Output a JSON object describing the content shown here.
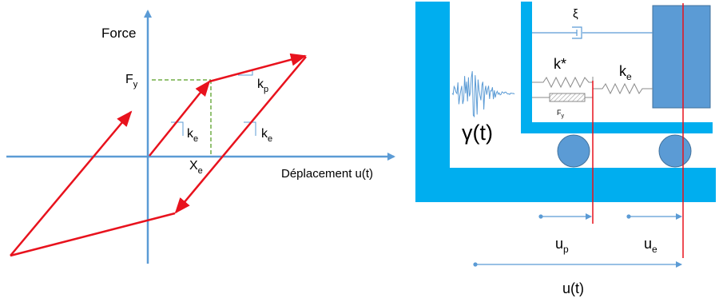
{
  "left_diagram": {
    "force_axis_label": "Force",
    "displacement_axis_label": "Déplacement u(t)",
    "fy_main": "F",
    "fy_sub": "y",
    "xe_main": "X",
    "xe_sub": "e",
    "slope_ke_1_main": "k",
    "slope_ke_1_sub": "e",
    "slope_kp_main": "k",
    "slope_kp_sub": "p",
    "slope_ke_2_main": "k",
    "slope_ke_2_sub": "e"
  },
  "right_diagram": {
    "damper_label": "ξ",
    "kstar_label": "k*",
    "ke_main": "k",
    "ke_sub": "e",
    "friction_main": "F",
    "friction_sub": "y",
    "excitation_label": "γ(t)",
    "up_main": "u",
    "up_sub": "p",
    "ue_main": "u",
    "ue_sub": "e",
    "total_disp_label": "u(t)"
  },
  "colors": {
    "structure_blue": "#00aeef",
    "mass_blue": "#5b9bd5",
    "axis_blue": "#5b9bd5",
    "loop_red": "#e8121d",
    "guide_green": "#70ad47",
    "spring_gray": "#8a8a8a"
  }
}
